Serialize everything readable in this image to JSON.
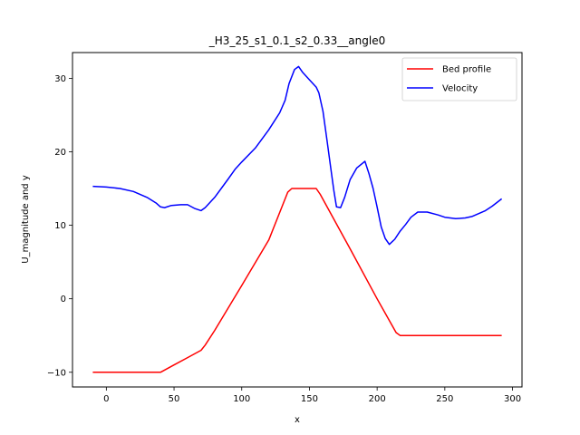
{
  "chart_data": {
    "type": "line",
    "title": "_H3_25_s1_0.1_s2_0.33__angle0",
    "xlabel": "x",
    "ylabel": "U_magnitude and y",
    "xlim": [
      -25,
      307
    ],
    "ylim": [
      -12,
      33.5
    ],
    "xticks": [
      0,
      50,
      100,
      150,
      200,
      250,
      300
    ],
    "yticks": [
      -10,
      0,
      10,
      20,
      30
    ],
    "xtick_labels": [
      "0",
      "50",
      "100",
      "150",
      "200",
      "250",
      "300"
    ],
    "ytick_labels": [
      "−10",
      "0",
      "10",
      "20",
      "30"
    ],
    "grid": false,
    "legend_position": "top-right",
    "series": [
      {
        "name": "Bed profile",
        "color": "#ff0000",
        "points": [
          [
            -10,
            -10
          ],
          [
            40,
            -10
          ],
          [
            42,
            -9.8
          ],
          [
            50,
            -9.0
          ],
          [
            60,
            -8.0
          ],
          [
            70,
            -7.0
          ],
          [
            73,
            -6.3
          ],
          [
            80,
            -4.3
          ],
          [
            100,
            1.8
          ],
          [
            120,
            8.0
          ],
          [
            134,
            14.5
          ],
          [
            137,
            15.0
          ],
          [
            150,
            15.0
          ],
          [
            155,
            15.0
          ],
          [
            158,
            14.2
          ],
          [
            180,
            6.8
          ],
          [
            200,
            0.0
          ],
          [
            214,
            -4.6
          ],
          [
            217,
            -5.0
          ],
          [
            250,
            -5.0
          ],
          [
            292,
            -5.0
          ]
        ]
      },
      {
        "name": "Velocity",
        "color": "#0000ff",
        "points": [
          [
            -10,
            15.3
          ],
          [
            0,
            15.2
          ],
          [
            10,
            15.0
          ],
          [
            20,
            14.6
          ],
          [
            30,
            13.8
          ],
          [
            37,
            13.0
          ],
          [
            40,
            12.5
          ],
          [
            43,
            12.4
          ],
          [
            48,
            12.7
          ],
          [
            55,
            12.8
          ],
          [
            60,
            12.8
          ],
          [
            65,
            12.3
          ],
          [
            70,
            12.0
          ],
          [
            73,
            12.4
          ],
          [
            80,
            13.8
          ],
          [
            90,
            16.3
          ],
          [
            95,
            17.6
          ],
          [
            100,
            18.6
          ],
          [
            110,
            20.5
          ],
          [
            120,
            23.0
          ],
          [
            128,
            25.3
          ],
          [
            132,
            27.0
          ],
          [
            135,
            29.3
          ],
          [
            139,
            31.2
          ],
          [
            142,
            31.6
          ],
          [
            145,
            30.8
          ],
          [
            150,
            29.8
          ],
          [
            155,
            28.8
          ],
          [
            157,
            28.0
          ],
          [
            160,
            25.5
          ],
          [
            163,
            21.5
          ],
          [
            166,
            17.5
          ],
          [
            168,
            14.8
          ],
          [
            170,
            12.5
          ],
          [
            173,
            12.4
          ],
          [
            176,
            13.8
          ],
          [
            180,
            16.2
          ],
          [
            185,
            17.8
          ],
          [
            191,
            18.7
          ],
          [
            194,
            17.0
          ],
          [
            197,
            15.0
          ],
          [
            200,
            12.5
          ],
          [
            203,
            9.8
          ],
          [
            206,
            8.2
          ],
          [
            209,
            7.4
          ],
          [
            213,
            8.1
          ],
          [
            217,
            9.2
          ],
          [
            221,
            10.1
          ],
          [
            225,
            11.1
          ],
          [
            230,
            11.8
          ],
          [
            237,
            11.8
          ],
          [
            245,
            11.4
          ],
          [
            250,
            11.1
          ],
          [
            258,
            10.9
          ],
          [
            265,
            11.0
          ],
          [
            270,
            11.2
          ],
          [
            280,
            12.0
          ],
          [
            285,
            12.6
          ],
          [
            292,
            13.6
          ]
        ]
      }
    ]
  }
}
